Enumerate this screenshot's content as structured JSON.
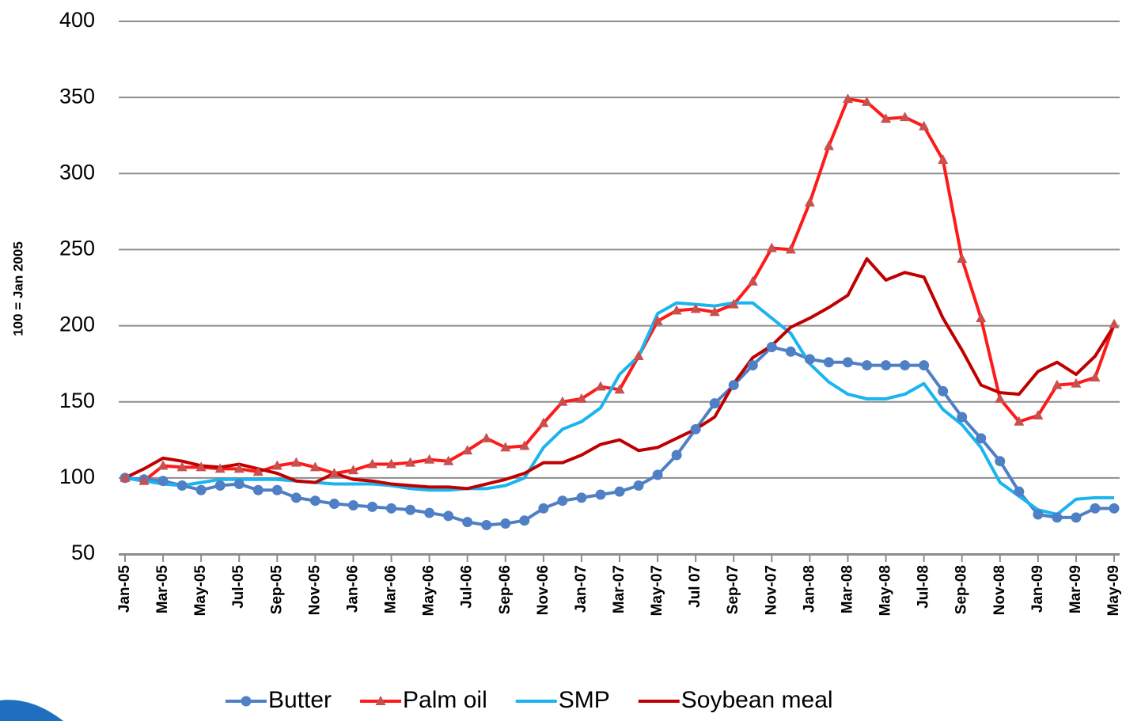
{
  "chart_data": {
    "type": "line",
    "y_label": "100 =  Jan 2005",
    "categories": [
      "Jan-05",
      null,
      "Mar-05",
      null,
      "May-05",
      null,
      "Jul-05",
      null,
      "Sep-05",
      null,
      "Nov-05",
      null,
      "Jan-06",
      null,
      "Mar-06",
      null,
      "May-06",
      null,
      "Jul-06",
      null,
      "Sep-06",
      null,
      "Nov-06",
      null,
      "Jan-07",
      null,
      "Mar-07",
      null,
      "May-07",
      null,
      "Jul 07",
      null,
      "Sep-07",
      null,
      "Nov-07",
      null,
      "Jan-08",
      null,
      "Mar-08",
      null,
      "May-08",
      null,
      "Jul-08",
      null,
      "Sep-08",
      null,
      "Nov-08",
      null,
      "Jan-09",
      null,
      "Mar-09",
      null,
      "May-09"
    ],
    "series": [
      {
        "name": "Butter",
        "color": "#4f7fc4",
        "marker": "circle",
        "values": [
          100,
          99,
          98,
          95,
          92,
          95,
          96,
          92,
          92,
          87,
          85,
          83,
          82,
          81,
          80,
          79,
          77,
          75,
          71,
          69,
          70,
          72,
          80,
          85,
          87,
          89,
          91,
          95,
          102,
          115,
          132,
          149,
          161,
          174,
          186,
          183,
          178,
          176,
          176,
          174,
          174,
          174,
          174,
          157,
          140,
          126,
          111,
          91,
          76,
          74,
          74,
          80,
          80
        ]
      },
      {
        "name": "Palm oil",
        "color": "#ff1a1a",
        "marker": "triangle",
        "values": [
          100,
          98,
          108,
          107,
          107,
          106,
          106,
          104,
          108,
          110,
          107,
          103,
          105,
          109,
          109,
          110,
          112,
          111,
          118,
          126,
          120,
          121,
          136,
          150,
          152,
          160,
          158,
          180,
          203,
          210,
          211,
          209,
          214,
          229,
          251,
          250,
          281,
          318,
          349,
          347,
          336,
          337,
          331,
          309,
          244,
          205,
          152,
          137,
          141,
          161,
          162,
          166,
          201
        ]
      },
      {
        "name": "SMP",
        "color": "#1ab4ee",
        "marker": "none",
        "values": [
          100,
          98,
          96,
          95,
          97,
          99,
          99,
          99,
          99,
          98,
          97,
          96,
          96,
          96,
          95,
          93,
          92,
          92,
          93,
          93,
          95,
          100,
          120,
          132,
          137,
          146,
          168,
          180,
          208,
          215,
          214,
          213,
          215,
          215,
          205,
          195,
          175,
          163,
          155,
          152,
          152,
          155,
          162,
          145,
          135,
          120,
          97,
          88,
          79,
          76,
          86,
          87,
          87
        ]
      },
      {
        "name": "Soybean meal",
        "color": "#c00000",
        "marker": "none",
        "values": [
          100,
          106,
          113,
          111,
          108,
          107,
          109,
          106,
          103,
          98,
          97,
          103,
          99,
          98,
          96,
          95,
          94,
          94,
          93,
          96,
          99,
          103,
          110,
          110,
          115,
          122,
          125,
          118,
          120,
          126,
          132,
          140,
          162,
          179,
          187,
          199,
          205,
          212,
          220,
          244,
          230,
          235,
          232,
          205,
          184,
          161,
          156,
          155,
          170,
          176,
          168,
          180,
          200
        ]
      }
    ],
    "ylim": [
      50,
      400
    ],
    "yticks": [
      50,
      100,
      150,
      200,
      250,
      300,
      350,
      400
    ],
    "grid": true,
    "legend": "bottom"
  }
}
